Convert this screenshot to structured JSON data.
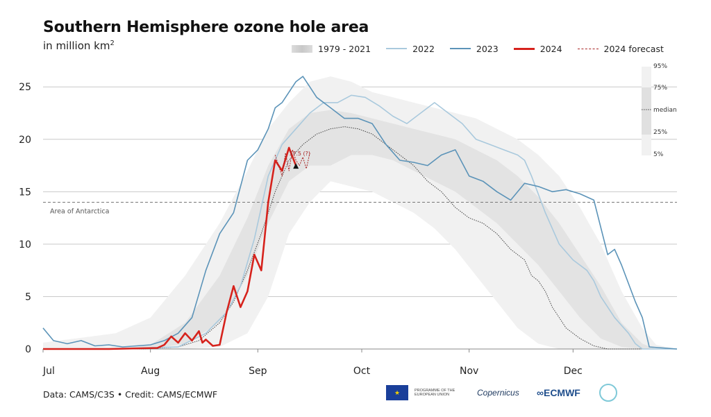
{
  "header": {
    "title": "Southern Hemisphere ozone hole area",
    "subtitle_prefix": "in million km",
    "subtitle_sup": "2"
  },
  "legend": {
    "band": "1979 - 2021",
    "y2022": "2022",
    "y2023": "2023",
    "y2024": "2024",
    "forecast": "2024 forecast"
  },
  "colors": {
    "y2022": "#a9c9dd",
    "y2023": "#5b93b8",
    "y2024": "#d6221c",
    "forecast": "#a82424",
    "median": "#444444",
    "band_outer": "#f1f1f1",
    "band_inner": "#e3e3e3",
    "grid": "#c9c9c9"
  },
  "chart_data": {
    "type": "line",
    "title": "Southern Hemisphere ozone hole area",
    "ylabel": "in million km2",
    "ylim": [
      0,
      27
    ],
    "yticks": [
      0,
      5,
      10,
      15,
      20,
      25
    ],
    "x_ticks": [
      {
        "label": "Jul",
        "day": 1
      },
      {
        "label": "Aug",
        "day": 32
      },
      {
        "label": "Sep",
        "day": 63
      },
      {
        "label": "Oct",
        "day": 93
      },
      {
        "label": "Nov",
        "day": 124
      },
      {
        "label": "Dec",
        "day": 154
      }
    ],
    "xlim": [
      1,
      184
    ],
    "reference_line": {
      "value": 14,
      "label": "Area of Antarctica"
    },
    "percentile_labels": [
      "95%",
      "75%",
      "median",
      "25%",
      "5%"
    ],
    "band_1979_2021": {
      "day": [
        1,
        22,
        32,
        42,
        52,
        60,
        66,
        72,
        78,
        84,
        90,
        96,
        102,
        108,
        114,
        120,
        126,
        132,
        138,
        144,
        150,
        156,
        162,
        168,
        174,
        178,
        184
      ],
      "p5": [
        0,
        0,
        0,
        0,
        0.2,
        1.5,
        5,
        11,
        14,
        16,
        15.5,
        15,
        14,
        13,
        11.5,
        9.5,
        7,
        4.5,
        2,
        0.5,
        0,
        0,
        0,
        0,
        0,
        0,
        0
      ],
      "p25": [
        0,
        0,
        0,
        0.5,
        2.5,
        7,
        12,
        16,
        17.5,
        17.5,
        18.5,
        18.5,
        18,
        17,
        16,
        15,
        13.5,
        12,
        10,
        8,
        5.5,
        3,
        1,
        0.2,
        0,
        0,
        0
      ],
      "p75": [
        0,
        0,
        0.4,
        2.5,
        7,
        12.5,
        17.5,
        21,
        22.5,
        22.8,
        22.5,
        22,
        21.5,
        21,
        20.5,
        20,
        19,
        18,
        16.5,
        14.5,
        12,
        9,
        6,
        2.5,
        0.5,
        0,
        0
      ],
      "p95": [
        0.6,
        1.5,
        3,
        7,
        12,
        17,
        21,
        23.5,
        25.5,
        26,
        25.5,
        24.5,
        24,
        23.5,
        23,
        22.5,
        22,
        21,
        20,
        18.5,
        16.5,
        13.5,
        10,
        5.5,
        2,
        0.4,
        0
      ]
    },
    "series": [
      {
        "name": "2022",
        "x": [
          1,
          20,
          40,
          48,
          54,
          58,
          62,
          66,
          70,
          74,
          78,
          82,
          86,
          90,
          94,
          98,
          102,
          106,
          110,
          114,
          118,
          122,
          126,
          130,
          134,
          138,
          140,
          142,
          146,
          150,
          154,
          158,
          160,
          162,
          166,
          170,
          172,
          174,
          176,
          184
        ],
        "y": [
          0,
          0,
          0.2,
          1.5,
          3.5,
          6,
          10.5,
          16.5,
          19.5,
          21,
          22.5,
          23.5,
          23.5,
          24.2,
          24,
          23.2,
          22.2,
          21.5,
          22.5,
          23.5,
          22.5,
          21.5,
          20,
          19.5,
          19,
          18.5,
          18,
          16.5,
          13,
          10,
          8.5,
          7.5,
          6.5,
          5,
          3,
          1.5,
          0.5,
          0,
          0,
          0
        ]
      },
      {
        "name": "2023",
        "x": [
          1,
          4,
          8,
          12,
          16,
          20,
          24,
          28,
          32,
          36,
          40,
          44,
          48,
          52,
          56,
          60,
          63,
          66,
          68,
          70,
          72,
          74,
          76,
          78,
          80,
          84,
          88,
          92,
          96,
          100,
          104,
          108,
          112,
          116,
          120,
          124,
          128,
          132,
          136,
          140,
          144,
          148,
          152,
          156,
          160,
          164,
          166,
          168,
          172,
          174,
          176,
          184
        ],
        "y": [
          2,
          0.8,
          0.5,
          0.8,
          0.3,
          0.4,
          0.2,
          0.3,
          0.4,
          0.8,
          1.5,
          3,
          7.5,
          11,
          13,
          18,
          19,
          21,
          23,
          23.5,
          24.5,
          25.5,
          26,
          25,
          24,
          23,
          22,
          22,
          21.5,
          19.5,
          18,
          17.8,
          17.5,
          18.5,
          19,
          16.5,
          16,
          15,
          14.2,
          15.8,
          15.5,
          15,
          15.2,
          14.8,
          14.2,
          9,
          9.5,
          8,
          4.5,
          3,
          0.2,
          0
        ]
      },
      {
        "name": "2024",
        "x": [
          1,
          20,
          34,
          36,
          38,
          40,
          42,
          44,
          46,
          47,
          48,
          50,
          52,
          54,
          56,
          58,
          60,
          62,
          64,
          66,
          68,
          70,
          72,
          74
        ],
        "y": [
          0,
          0,
          0.1,
          0.4,
          1.2,
          0.6,
          1.5,
          0.8,
          1.7,
          0.6,
          0.9,
          0.3,
          0.4,
          3.5,
          6,
          4,
          5.5,
          9,
          7.5,
          14,
          18,
          17,
          19.2,
          17.5
        ]
      },
      {
        "name": "2024 forecast",
        "x": [
          68,
          70,
          71,
          72,
          73,
          74,
          75,
          76,
          77,
          78
        ],
        "y": [
          18.5,
          16.5,
          18.7,
          17,
          19,
          18,
          17.5,
          18.3,
          17.2,
          18.7
        ]
      },
      {
        "name": "median",
        "x": [
          1,
          30,
          40,
          46,
          52,
          56,
          60,
          64,
          68,
          72,
          76,
          80,
          84,
          88,
          92,
          96,
          100,
          104,
          108,
          112,
          116,
          120,
          124,
          128,
          132,
          136,
          140,
          142,
          144,
          146,
          148,
          152,
          156,
          160,
          164,
          168,
          172,
          176
        ],
        "y": [
          0,
          0,
          0.2,
          0.8,
          2.5,
          4.5,
          7.5,
          11,
          15,
          18,
          19.5,
          20.5,
          21,
          21.2,
          21,
          20.5,
          19.5,
          18.5,
          17.5,
          16,
          15,
          13.5,
          12.5,
          12,
          11,
          9.5,
          8.5,
          7,
          6.5,
          5.5,
          4,
          2,
          1,
          0.3,
          0,
          0,
          0,
          0
        ]
      }
    ],
    "annotation": {
      "day": 74,
      "value": 17.4,
      "label": "17.5 (?)"
    }
  },
  "footer": {
    "credit": "Data: CAMS/C3S • Credit: CAMS/ECMWF",
    "eu_text": "PROGRAMME OF THE EUROPEAN UNION",
    "copernicus": "opernicus",
    "ecmwf": "ECMWF"
  }
}
